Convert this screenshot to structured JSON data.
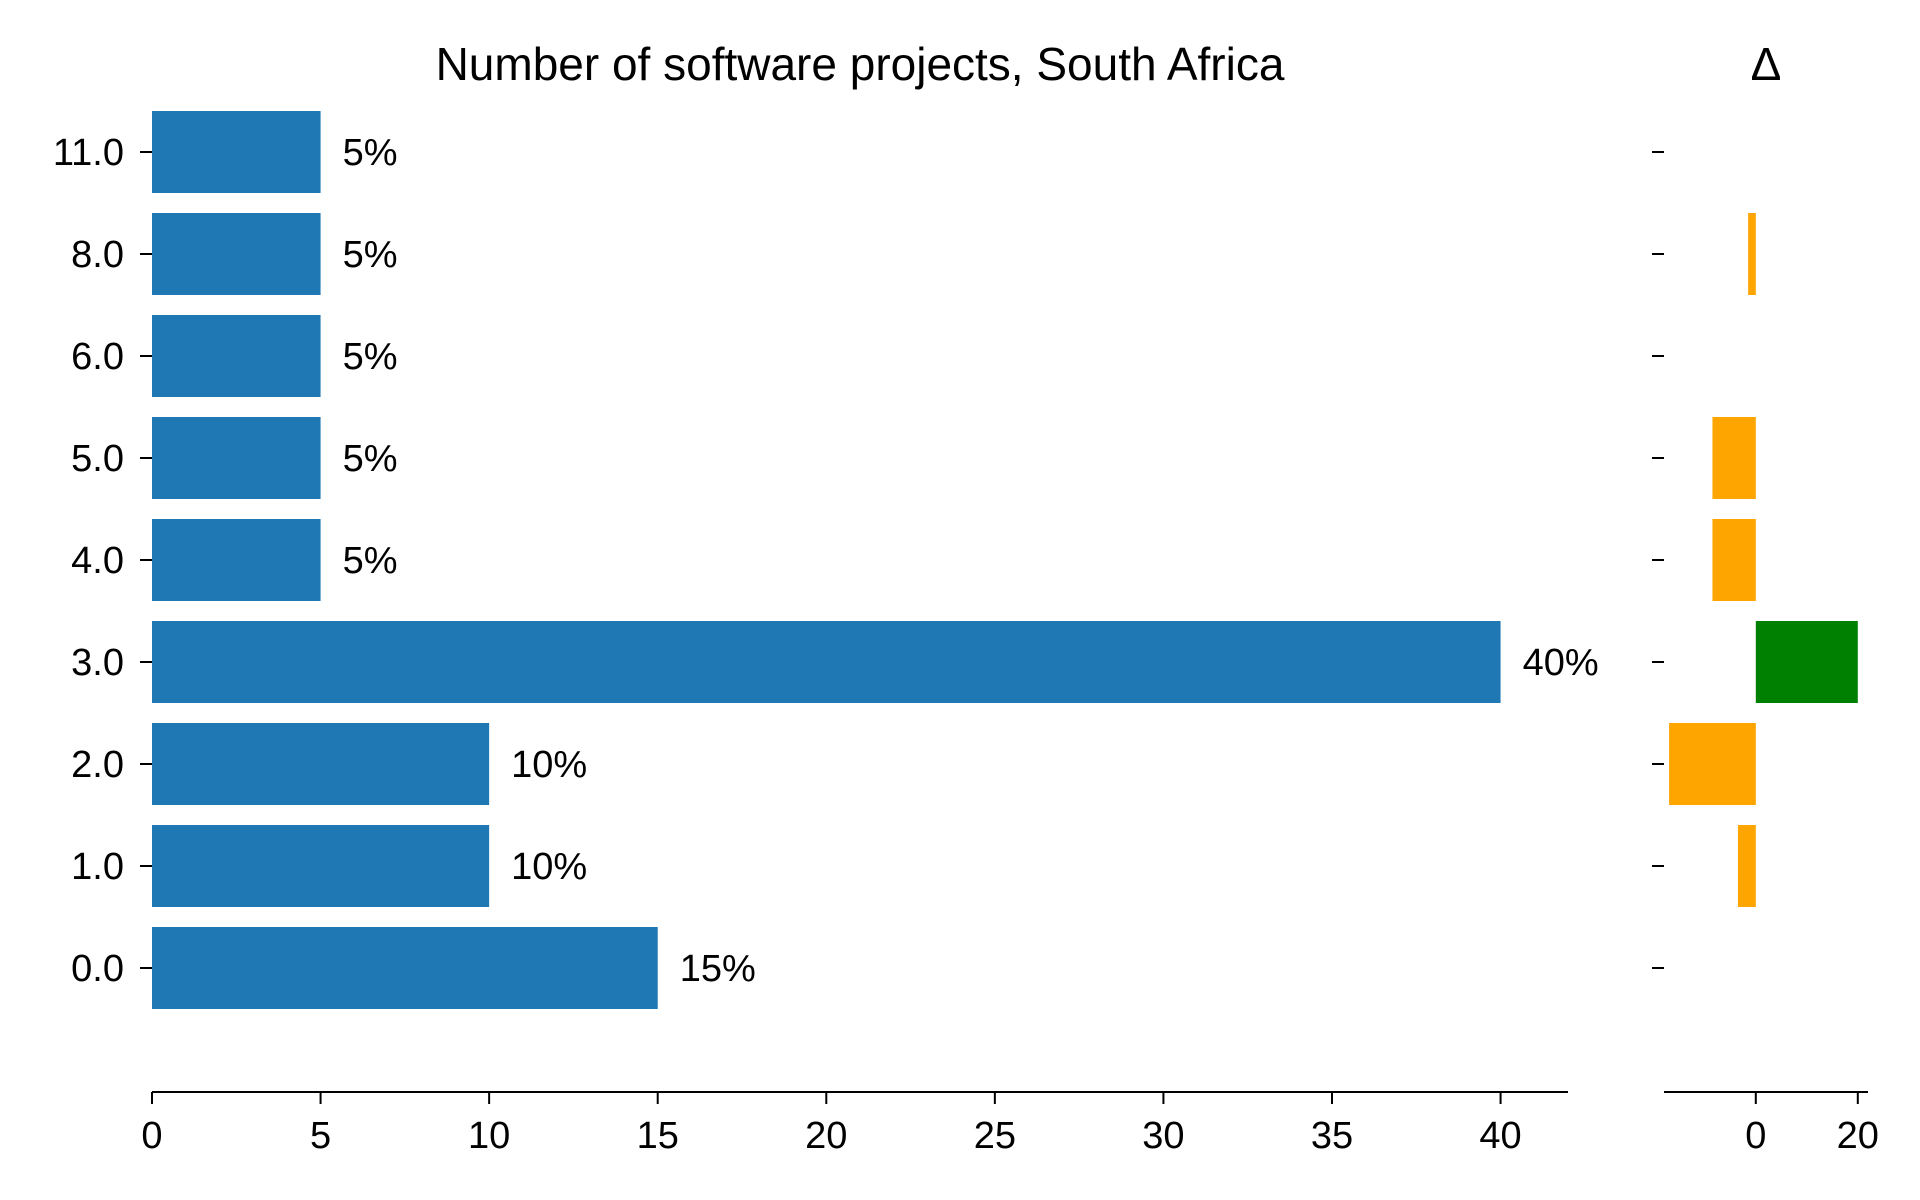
{
  "chart_data": [
    {
      "type": "bar",
      "orientation": "horizontal",
      "title": "Number of software projects, South Africa",
      "xlabel": "",
      "ylabel": "",
      "categories": [
        "0.0",
        "1.0",
        "2.0",
        "3.0",
        "4.0",
        "5.0",
        "6.0",
        "8.0",
        "11.0"
      ],
      "values": [
        15,
        10,
        10,
        40,
        5,
        5,
        5,
        5,
        5
      ],
      "data_labels": [
        "15%",
        "10%",
        "10%",
        "40%",
        "5%",
        "5%",
        "5%",
        "5%",
        "5%"
      ],
      "xlim": [
        0,
        42
      ],
      "xticks": [
        0,
        5,
        10,
        15,
        20,
        25,
        30,
        35,
        40
      ],
      "color": "#1f77b4",
      "grid": false,
      "legend": "none"
    },
    {
      "type": "bar",
      "orientation": "horizontal",
      "title": "Δ",
      "xlabel": "",
      "ylabel": "",
      "categories": [
        "0.0",
        "1.0",
        "2.0",
        "3.0",
        "4.0",
        "5.0",
        "6.0",
        "8.0",
        "11.0"
      ],
      "values": [
        0,
        -3.5,
        -17,
        20,
        -8.5,
        -8.5,
        0,
        -1.5,
        0
      ],
      "xlim": [
        -18,
        22
      ],
      "xticks": [
        0,
        20
      ],
      "positive_color": "#008000",
      "negative_color": "#ffa500",
      "grid": false,
      "legend": "none"
    }
  ]
}
